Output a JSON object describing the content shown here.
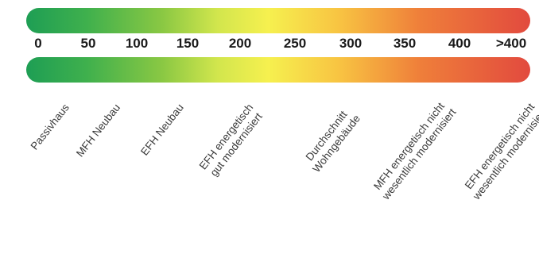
{
  "scale": {
    "ticks": [
      "0",
      "50",
      "100",
      "150",
      "200",
      "250",
      "300",
      "350",
      "400",
      ">400"
    ],
    "colors": {
      "low": "#1e9e54",
      "mid": "#f6f04f",
      "high": "#e24a3e"
    }
  },
  "categories": [
    {
      "id": "passivhaus",
      "line1": "Passivhaus",
      "line2": ""
    },
    {
      "id": "mfh-neubau",
      "line1": "MFH Neubau",
      "line2": ""
    },
    {
      "id": "efh-neubau",
      "line1": "EFH Neubau",
      "line2": ""
    },
    {
      "id": "efh-gut-modernisiert",
      "line1": "EFH energetisch",
      "line2": "gut modernisiert"
    },
    {
      "id": "durchschnitt-wohngebaeude",
      "line1": "Durchschnitt",
      "line2": "Wohngebäude"
    },
    {
      "id": "mfh-nicht-modernisiert",
      "line1": "MFH energetisch nicht",
      "line2": "wesentlich modernisiert"
    },
    {
      "id": "efh-nicht-modernisiert",
      "line1": "EFH energetisch nicht",
      "line2": "wesentlich modernisiert"
    }
  ]
}
